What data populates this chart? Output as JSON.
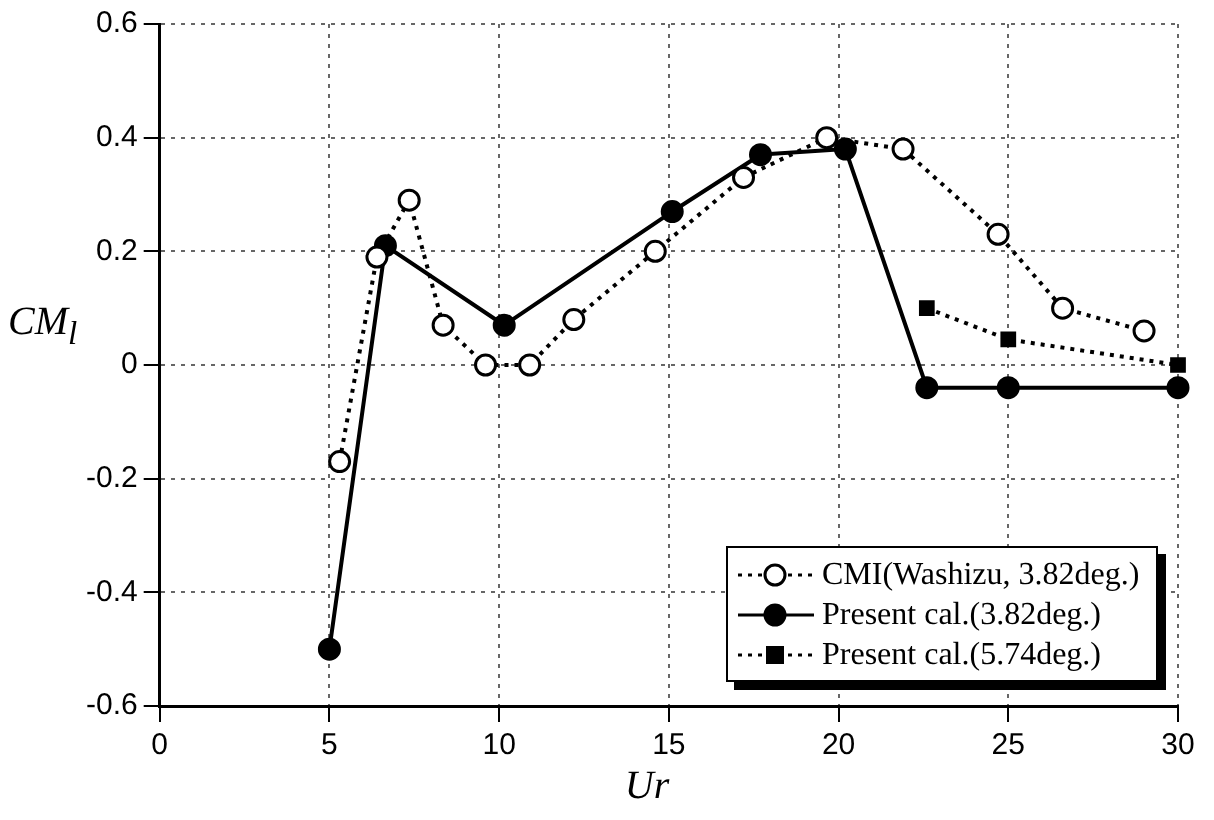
{
  "chart_data": {
    "type": "line",
    "xlabel": "Ur",
    "ylabel": "CM$_{l}$",
    "xlim": [
      0,
      30
    ],
    "ylim": [
      -0.6,
      0.6
    ],
    "xticks": [
      0,
      5,
      10,
      15,
      20,
      25,
      30
    ],
    "yticks": [
      -0.6,
      -0.4,
      -0.2,
      0,
      0.2,
      0.4,
      0.6
    ],
    "grid": true,
    "legend": "bottom right",
    "series": [
      {
        "name": "CMI(Washizu, 3.82deg.)",
        "color": "#000000",
        "marker": "circle",
        "line_style": "dotted",
        "x": [
          5.3,
          6.4,
          7.35,
          8.35,
          9.6,
          10.9,
          12.2,
          14.6,
          17.2,
          19.65,
          21.9,
          24.7,
          26.6,
          29.0
        ],
        "values": [
          -0.17,
          0.19,
          0.29,
          0.07,
          0.0,
          0.0,
          0.08,
          0.2,
          0.33,
          0.4,
          0.38,
          0.23,
          0.1,
          0.06
        ]
      },
      {
        "name": "Present cal.(3.82deg.)",
        "color": "#000000",
        "marker": "circle",
        "line_style": "solid",
        "x": [
          5,
          6.65,
          10.15,
          15.1,
          17.7,
          20.2,
          22.6,
          25,
          30
        ],
        "values": [
          -0.5,
          0.21,
          0.07,
          0.27,
          0.37,
          0.38,
          -0.04,
          -0.04,
          -0.04
        ]
      },
      {
        "name": "Present cal.(5.74deg.)",
        "color": "#000000",
        "marker": "square",
        "line_style": "dotted",
        "x": [
          22.6,
          25,
          30
        ],
        "values": [
          0.1,
          0.045,
          0.0
        ]
      }
    ]
  }
}
